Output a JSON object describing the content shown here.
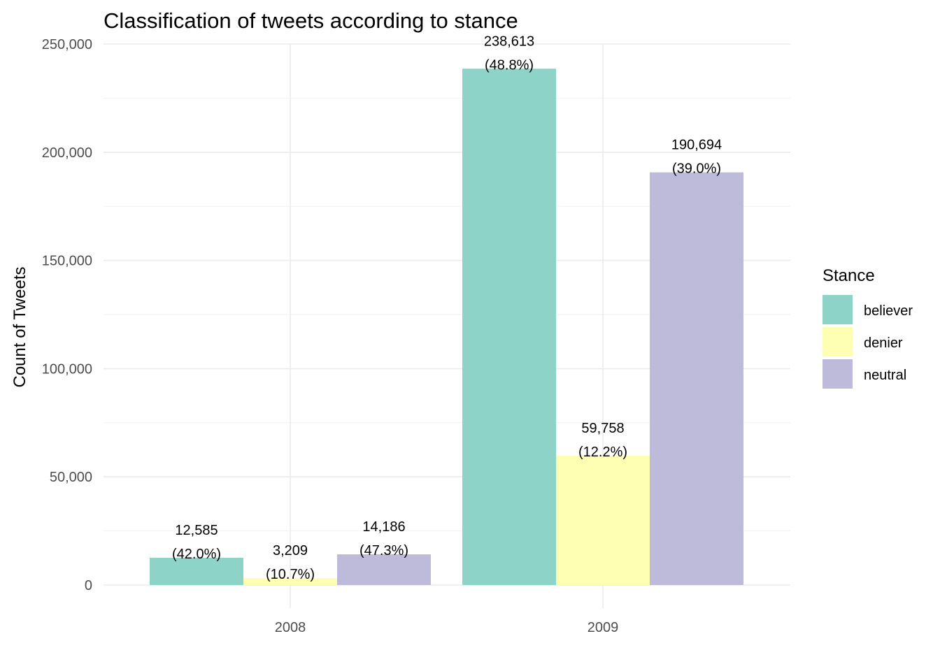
{
  "chart_data": {
    "type": "bar",
    "title": "Classification of tweets according to stance",
    "xlabel": "",
    "ylabel": "Count of Tweets",
    "categories": [
      "2008",
      "2009"
    ],
    "series": [
      {
        "name": "believer",
        "color": "#8DD3C7",
        "values": [
          12585,
          238613
        ],
        "labels": [
          "12,585",
          "238,613"
        ],
        "percents": [
          "(42.0%)",
          "(48.8%)"
        ]
      },
      {
        "name": "denier",
        "color": "#FFFFB3",
        "values": [
          3209,
          59758
        ],
        "labels": [
          "3,209",
          "59,758"
        ],
        "percents": [
          "(10.7%)",
          "(12.2%)"
        ]
      },
      {
        "name": "neutral",
        "color": "#BEBADA",
        "values": [
          14186,
          190694
        ],
        "labels": [
          "14,186",
          "190,694"
        ],
        "percents": [
          "(47.3%)",
          "(39.0%)"
        ]
      }
    ],
    "ylim": [
      0,
      250000
    ],
    "yticks": [
      0,
      50000,
      100000,
      150000,
      200000,
      250000
    ],
    "ytick_labels": [
      "0",
      "50,000",
      "100,000",
      "150,000",
      "200,000",
      "250,000"
    ],
    "grid": true,
    "legend": {
      "title": "Stance",
      "position": "right"
    }
  }
}
